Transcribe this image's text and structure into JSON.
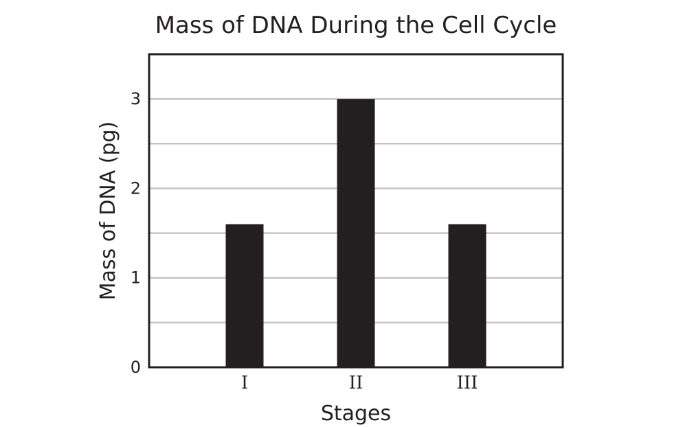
{
  "chart_data": {
    "type": "bar",
    "title": "Mass of DNA During the Cell Cycle",
    "xlabel": "Stages",
    "ylabel": "Mass of DNA (pg)",
    "categories": [
      "I",
      "II",
      "III"
    ],
    "values": [
      1.6,
      3.0,
      1.6
    ],
    "ylim": [
      0,
      3.5
    ],
    "yticks": [
      0,
      1,
      2,
      3
    ],
    "grid_step": 0.5,
    "grid": true,
    "colors": {
      "bar": "#231f20",
      "grid": "#c4c4c4",
      "frame": "#231f20"
    }
  }
}
